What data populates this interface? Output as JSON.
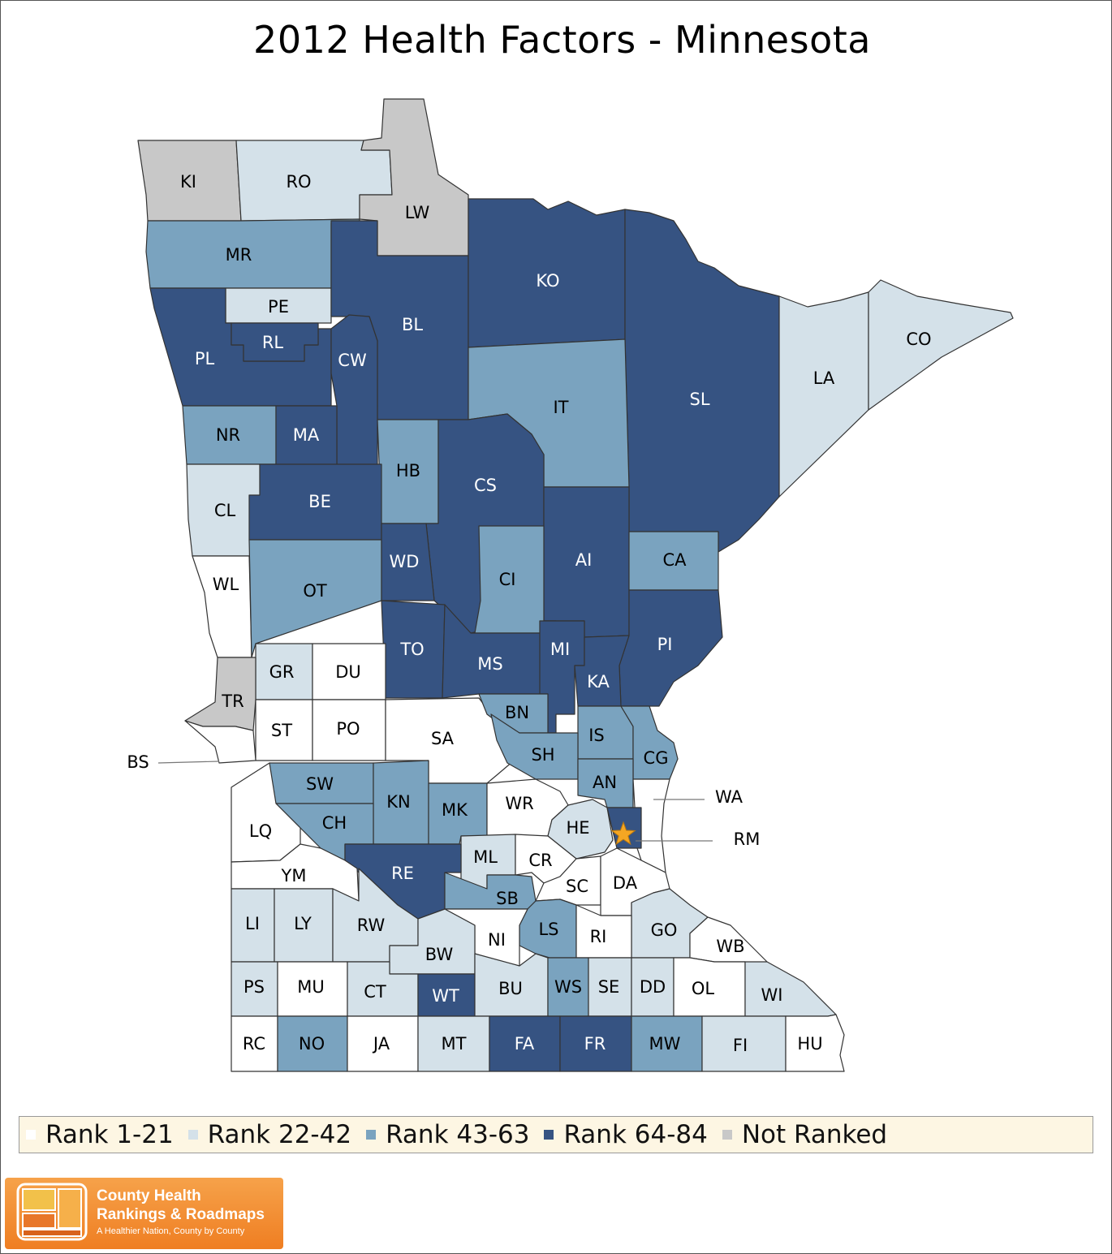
{
  "title": "2012 Health Factors - Minnesota",
  "colors": {
    "rank_1_21": "#ffffff",
    "rank_22_42": "#d4e1e9",
    "rank_43_63": "#7aa3bf",
    "rank_64_84": "#365382",
    "not_ranked": "#c8c8c8",
    "star": "#f5a623"
  },
  "legend": [
    {
      "label": "Rank 1-21",
      "class": "rank_1_21"
    },
    {
      "label": "Rank 22-42",
      "class": "rank_22_42"
    },
    {
      "label": "Rank 43-63",
      "class": "rank_43_63"
    },
    {
      "label": "Rank 64-84",
      "class": "rank_64_84"
    },
    {
      "label": "Not Ranked",
      "class": "not_ranked"
    }
  ],
  "counties": [
    {
      "abbr": "KI",
      "class": "not_ranked"
    },
    {
      "abbr": "RO",
      "class": "rank_22_42"
    },
    {
      "abbr": "LW",
      "class": "not_ranked"
    },
    {
      "abbr": "MR",
      "class": "rank_43_63"
    },
    {
      "abbr": "PE",
      "class": "rank_22_42"
    },
    {
      "abbr": "PL",
      "class": "rank_64_84"
    },
    {
      "abbr": "RL",
      "class": "rank_64_84"
    },
    {
      "abbr": "BL",
      "class": "rank_64_84"
    },
    {
      "abbr": "CW",
      "class": "rank_64_84"
    },
    {
      "abbr": "KO",
      "class": "rank_64_84"
    },
    {
      "abbr": "SL",
      "class": "rank_64_84"
    },
    {
      "abbr": "LA",
      "class": "rank_22_42"
    },
    {
      "abbr": "CO",
      "class": "rank_22_42"
    },
    {
      "abbr": "IT",
      "class": "rank_43_63"
    },
    {
      "abbr": "NR",
      "class": "rank_43_63"
    },
    {
      "abbr": "MA",
      "class": "rank_64_84"
    },
    {
      "abbr": "HB",
      "class": "rank_43_63"
    },
    {
      "abbr": "CS",
      "class": "rank_64_84"
    },
    {
      "abbr": "CL",
      "class": "rank_22_42"
    },
    {
      "abbr": "BE",
      "class": "rank_64_84"
    },
    {
      "abbr": "AI",
      "class": "rank_64_84"
    },
    {
      "abbr": "CA",
      "class": "rank_43_63"
    },
    {
      "abbr": "WL",
      "class": "rank_1_21"
    },
    {
      "abbr": "OT",
      "class": "rank_43_63"
    },
    {
      "abbr": "WD",
      "class": "rank_64_84"
    },
    {
      "abbr": "CI",
      "class": "rank_43_63"
    },
    {
      "abbr": "PI",
      "class": "rank_64_84"
    },
    {
      "abbr": "TO",
      "class": "rank_64_84"
    },
    {
      "abbr": "MS",
      "class": "rank_64_84"
    },
    {
      "abbr": "MI",
      "class": "rank_64_84"
    },
    {
      "abbr": "KA",
      "class": "rank_64_84"
    },
    {
      "abbr": "GR",
      "class": "rank_22_42"
    },
    {
      "abbr": "DU",
      "class": "rank_1_21"
    },
    {
      "abbr": "TR",
      "class": "not_ranked"
    },
    {
      "abbr": "ST",
      "class": "rank_1_21"
    },
    {
      "abbr": "PO",
      "class": "rank_1_21"
    },
    {
      "abbr": "SA",
      "class": "rank_1_21"
    },
    {
      "abbr": "BN",
      "class": "rank_43_63"
    },
    {
      "abbr": "IS",
      "class": "rank_43_63"
    },
    {
      "abbr": "SH",
      "class": "rank_43_63"
    },
    {
      "abbr": "CG",
      "class": "rank_43_63"
    },
    {
      "abbr": "AN",
      "class": "rank_43_63"
    },
    {
      "abbr": "BS",
      "class": "rank_1_21"
    },
    {
      "abbr": "SW",
      "class": "rank_43_63"
    },
    {
      "abbr": "KN",
      "class": "rank_43_63"
    },
    {
      "abbr": "MK",
      "class": "rank_43_63"
    },
    {
      "abbr": "WR",
      "class": "rank_1_21"
    },
    {
      "abbr": "WA",
      "class": "rank_1_21"
    },
    {
      "abbr": "HE",
      "class": "rank_22_42"
    },
    {
      "abbr": "RM",
      "class": "rank_64_84"
    },
    {
      "abbr": "CH",
      "class": "rank_43_63"
    },
    {
      "abbr": "LQ",
      "class": "rank_1_21"
    },
    {
      "abbr": "ML",
      "class": "rank_22_42"
    },
    {
      "abbr": "CR",
      "class": "rank_1_21"
    },
    {
      "abbr": "RE",
      "class": "rank_64_84"
    },
    {
      "abbr": "YM",
      "class": "rank_1_21"
    },
    {
      "abbr": "SC",
      "class": "rank_1_21"
    },
    {
      "abbr": "DA",
      "class": "rank_1_21"
    },
    {
      "abbr": "SB",
      "class": "rank_43_63"
    },
    {
      "abbr": "LI",
      "class": "rank_22_42"
    },
    {
      "abbr": "LY",
      "class": "rank_22_42"
    },
    {
      "abbr": "RW",
      "class": "rank_22_42"
    },
    {
      "abbr": "LS",
      "class": "rank_43_63"
    },
    {
      "abbr": "GO",
      "class": "rank_22_42"
    },
    {
      "abbr": "NI",
      "class": "rank_1_21"
    },
    {
      "abbr": "RI",
      "class": "rank_1_21"
    },
    {
      "abbr": "WB",
      "class": "rank_1_21"
    },
    {
      "abbr": "BW",
      "class": "rank_22_42"
    },
    {
      "abbr": "PS",
      "class": "rank_22_42"
    },
    {
      "abbr": "MU",
      "class": "rank_1_21"
    },
    {
      "abbr": "CT",
      "class": "rank_22_42"
    },
    {
      "abbr": "WT",
      "class": "rank_64_84"
    },
    {
      "abbr": "BU",
      "class": "rank_22_42"
    },
    {
      "abbr": "WS",
      "class": "rank_43_63"
    },
    {
      "abbr": "SE",
      "class": "rank_22_42"
    },
    {
      "abbr": "DD",
      "class": "rank_22_42"
    },
    {
      "abbr": "OL",
      "class": "rank_1_21"
    },
    {
      "abbr": "WI",
      "class": "rank_22_42"
    },
    {
      "abbr": "RC",
      "class": "rank_1_21"
    },
    {
      "abbr": "NO",
      "class": "rank_43_63"
    },
    {
      "abbr": "JA",
      "class": "rank_1_21"
    },
    {
      "abbr": "MT",
      "class": "rank_22_42"
    },
    {
      "abbr": "FA",
      "class": "rank_64_84"
    },
    {
      "abbr": "FR",
      "class": "rank_64_84"
    },
    {
      "abbr": "MW",
      "class": "rank_43_63"
    },
    {
      "abbr": "FI",
      "class": "rank_22_42"
    },
    {
      "abbr": "HU",
      "class": "rank_1_21"
    }
  ],
  "logo": {
    "line1": "County Health",
    "line2": "Rankings & Roadmaps",
    "line3": "A Healthier Nation, County by County"
  }
}
